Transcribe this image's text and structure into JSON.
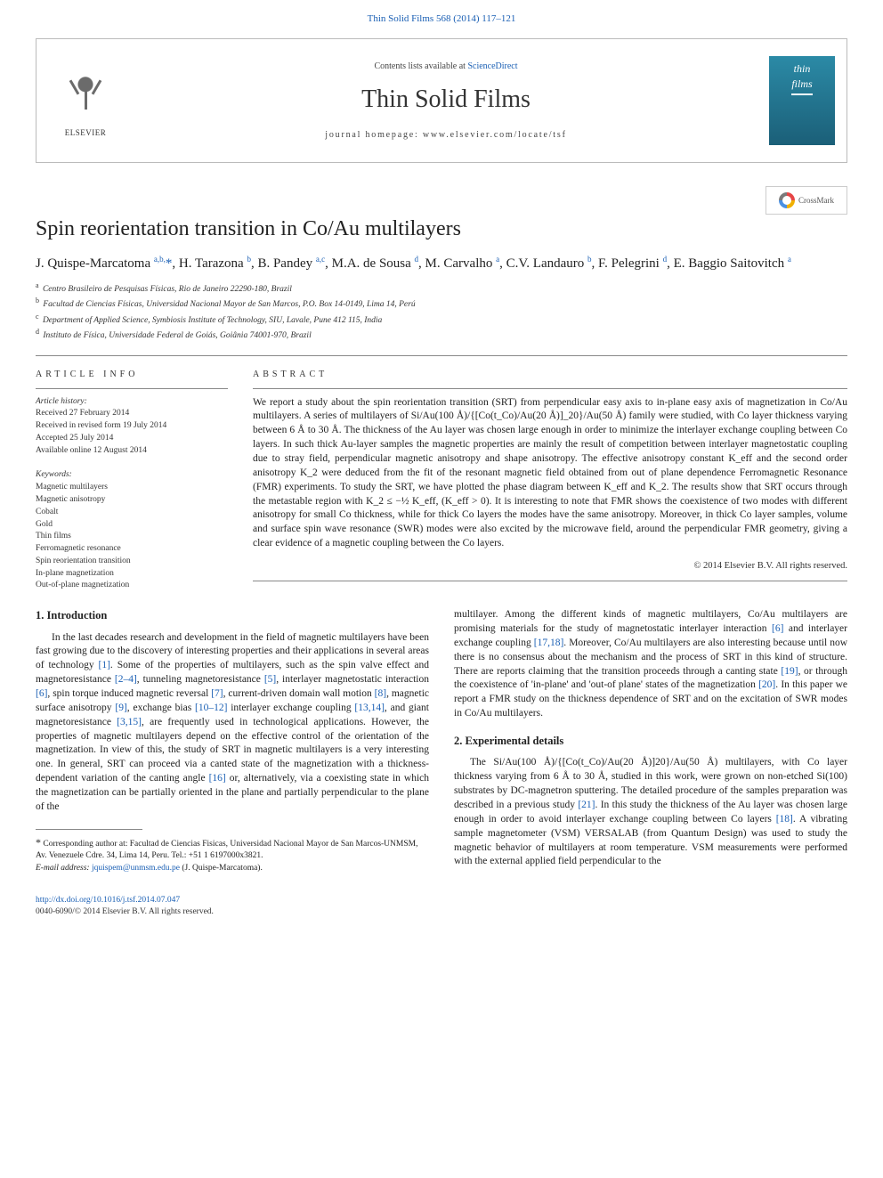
{
  "top_link": "Thin Solid Films 568 (2014) 117–121",
  "header": {
    "publisher": "ELSEVIER",
    "contents_pre": "Contents lists available at ",
    "contents_link": "ScienceDirect",
    "journal": "Thin Solid Films",
    "home_pre": "journal homepage: ",
    "home_url": "www.elsevier.com/locate/tsf",
    "cover_t1": "thin",
    "cover_t2": "films"
  },
  "crossmark": "CrossMark",
  "title": "Spin reorientation transition in Co/Au multilayers",
  "authors": "J. Quispe-Marcatoma <sup>a,b,</sup><span class='star'>*</span>, H. Tarazona <sup>b</sup>, B. Pandey <sup>a,c</sup>, M.A. de Sousa <sup>d</sup>, M. Carvalho <sup>a</sup>, C.V. Landauro <sup>b</sup>, F. Pelegrini <sup>d</sup>, E. Baggio Saitovitch <sup>a</sup>",
  "affils": {
    "a": "Centro Brasileiro de Pesquisas Físicas, Rio de Janeiro 22290-180, Brazil",
    "b": "Facultad de Ciencias Físicas, Universidad Nacional Mayor de San Marcos, P.O. Box 14-0149, Lima 14, Perú",
    "c": "Department of Applied Science, Symbiosis Institute of Technology, SIU, Lavale, Pune 412 115, India",
    "d": "Instituto de Física, Universidade Federal de Goiás, Goiânia 74001-970, Brazil"
  },
  "artinfo_head": "ARTICLE INFO",
  "abstract_head": "ABSTRACT",
  "history": {
    "lbl": "Article history:",
    "r": "Received 27 February 2014",
    "rr": "Received in revised form 19 July 2014",
    "a": "Accepted 25 July 2014",
    "o": "Available online 12 August 2014"
  },
  "kw_lbl": "Keywords:",
  "kw": [
    "Magnetic multilayers",
    "Magnetic anisotropy",
    "Cobalt",
    "Gold",
    "Thin films",
    "Ferromagnetic resonance",
    "Spin reorientation transition",
    "In-plane magnetization",
    "Out-of-plane magnetization"
  ],
  "abstract": "We report a study about the spin reorientation transition (SRT) from perpendicular easy axis to in-plane easy axis of magnetization in Co/Au multilayers. A series of multilayers of Si/Au(100 Å)/{[Co(t_Co)/Au(20 Å)]_20}/Au(50 Å) family were studied, with Co layer thickness varying between 6 Å to 30 Å. The thickness of the Au layer was chosen large enough in order to minimize the interlayer exchange coupling between Co layers. In such thick Au-layer samples the magnetic properties are mainly the result of competition between interlayer magnetostatic coupling due to stray field, perpendicular magnetic anisotropy and shape anisotropy. The effective anisotropy constant K_eff and the second order anisotropy K_2 were deduced from the fit of the resonant magnetic field obtained from out of plane dependence Ferromagnetic Resonance (FMR) experiments. To study the SRT, we have plotted the phase diagram between K_eff and K_2. The results show that SRT occurs through the metastable region with K_2 ≤ −½ K_eff, (K_eff > 0). It is interesting to note that FMR shows the coexistence of two modes with different anisotropy for small Co thickness, while for thick Co layers the modes have the same anisotropy. Moreover, in thick Co layer samples, volume and surface spin wave resonance (SWR) modes were also excited by the microwave field, around the perpendicular FMR geometry, giving a clear evidence of a magnetic coupling between the Co layers.",
  "copyright": "© 2014 Elsevier B.V. All rights reserved.",
  "s1_head": "1. Introduction",
  "s1_p1": "In the last decades research and development in the field of magnetic multilayers have been fast growing due to the discovery of interesting properties and their applications in several areas of technology <span class='ref'>[1]</span>. Some of the properties of multilayers, such as the spin valve effect and magnetoresistance <span class='ref'>[2–4]</span>, tunneling magnetoresistance <span class='ref'>[5]</span>, interlayer magnetostatic interaction <span class='ref'>[6]</span>, spin torque induced magnetic reversal <span class='ref'>[7]</span>, current-driven domain wall motion <span class='ref'>[8]</span>, magnetic surface anisotropy <span class='ref'>[9]</span>, exchange bias <span class='ref'>[10–12]</span> interlayer exchange coupling <span class='ref'>[13,14]</span>, and giant magnetoresistance <span class='ref'>[3,15]</span>, are frequently used in technological applications. However, the properties of magnetic multilayers depend on the effective control of the orientation of the magnetization. In view of this, the study of SRT in magnetic multilayers is a very interesting one. In general, SRT can proceed via a canted state of the magnetization with a thickness-dependent variation of the canting angle <span class='ref'>[16]</span> or, alternatively, via a coexisting state in which the magnetization can be partially oriented in the plane and partially perpendicular to the plane of the",
  "s1_p1b": "multilayer. Among the different kinds of magnetic multilayers, Co/Au multilayers are promising materials for the study of magnetostatic interlayer interaction <span class='ref'>[6]</span> and interlayer exchange coupling <span class='ref'>[17,18]</span>. Moreover, Co/Au multilayers are also interesting because until now there is no consensus about the mechanism and the process of SRT in this kind of structure. There are reports claiming that the transition proceeds through a canting state <span class='ref'>[19]</span>, or through the coexistence of 'in-plane' and 'out-of plane' states of the magnetization <span class='ref'>[20]</span>. In this paper we report a FMR study on the thickness dependence of SRT and on the excitation of SWR modes in Co/Au multilayers.",
  "s2_head": "2. Experimental details",
  "s2_p1": "The Si/Au(100 Å)/{[Co(t_Co)/Au(20 Å)]20}/Au(50 Å) multilayers, with Co layer thickness varying from 6 Å to 30 Å, studied in this work, were grown on non-etched Si(100) substrates by DC-magnetron sputtering. The detailed procedure of the samples preparation was described in a previous study <span class='ref'>[21]</span>. In this study the thickness of the Au layer was chosen large enough in order to avoid interlayer exchange coupling between Co layers <span class='ref'>[18]</span>. A vibrating sample magnetometer (VSM) VERSALAB (from Quantum Design) was used to study the magnetic behavior of multilayers at room temperature. VSM measurements were performed with the external applied field perpendicular to the",
  "corr": {
    "text": "Corresponding author at: Facultad de Ciencias Fisicas, Universidad Nacional Mayor de San Marcos-UNMSM, Av. Venezuele Cdre. 34, Lima 14, Peru. Tel.: +51 1 6197000x3821.",
    "email_lbl": "E-mail address: ",
    "email": "jquispem@unmsm.edu.pe",
    "email_sfx": " (J. Quispe-Marcatoma)."
  },
  "footer": {
    "doi": "http://dx.doi.org/10.1016/j.tsf.2014.07.047",
    "cp": "0040-6090/© 2014 Elsevier B.V. All rights reserved."
  }
}
